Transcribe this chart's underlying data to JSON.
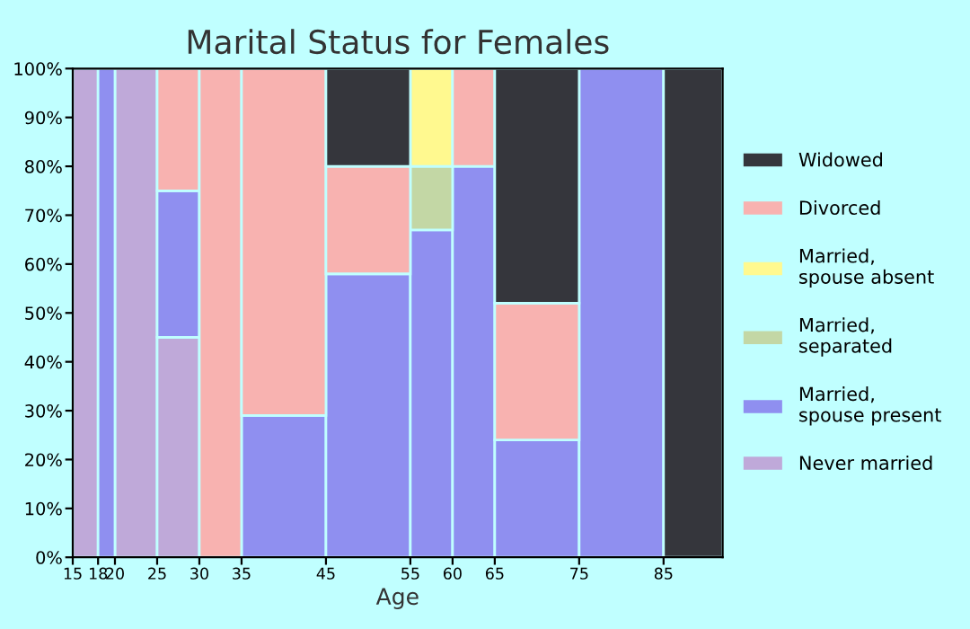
{
  "chart_data": {
    "type": "bar",
    "stacked": true,
    "title": "Marital Status for Females",
    "xlabel": "Age",
    "x": [
      16.5,
      19,
      22.5,
      27.5,
      32.5,
      40,
      50,
      57.5,
      62.5,
      70,
      80,
      88.5
    ],
    "xlim": [
      15,
      92
    ],
    "xticks": [
      15,
      18,
      20,
      25,
      30,
      35,
      45,
      55,
      60,
      65,
      75,
      85
    ],
    "ylim": [
      0,
      100
    ],
    "yticks": [
      {
        "value": 0,
        "label": "0%"
      },
      {
        "value": 10,
        "label": "10%"
      },
      {
        "value": 20,
        "label": "20%"
      },
      {
        "value": 30,
        "label": "30%"
      },
      {
        "value": 40,
        "label": "40%"
      },
      {
        "value": 50,
        "label": "50%"
      },
      {
        "value": 60,
        "label": "60%"
      },
      {
        "value": 70,
        "label": "70%"
      },
      {
        "value": 80,
        "label": "80%"
      },
      {
        "value": 90,
        "label": "90%"
      },
      {
        "value": 100,
        "label": "100%"
      }
    ],
    "grid": false,
    "legend": "right",
    "series": [
      {
        "name": "Never married",
        "color": "#bfa9d9",
        "values": [
          100,
          null,
          100,
          45,
          null,
          null,
          null,
          null,
          null,
          null,
          null,
          null
        ]
      },
      {
        "name": "Married,\nspouse present",
        "color": "#8f8ff0",
        "values": [
          null,
          100,
          null,
          30,
          null,
          29,
          58,
          67,
          80,
          24,
          100,
          null
        ]
      },
      {
        "name": "Married,\nseparated",
        "color": "#c3d7a5",
        "values": [
          null,
          null,
          null,
          null,
          null,
          null,
          null,
          13,
          null,
          null,
          null,
          null
        ]
      },
      {
        "name": "Married,\nspouse absent",
        "color": "#fff98f",
        "values": [
          null,
          null,
          null,
          null,
          null,
          null,
          null,
          20,
          null,
          null,
          null,
          null
        ]
      },
      {
        "name": "Divorced",
        "color": "#f8b2b0",
        "values": [
          null,
          null,
          null,
          25,
          100,
          71,
          22,
          null,
          20,
          28,
          null,
          null
        ]
      },
      {
        "name": "Widowed",
        "color": "#35363c",
        "values": [
          null,
          null,
          null,
          null,
          null,
          null,
          20,
          null,
          null,
          48,
          null,
          100
        ]
      }
    ]
  }
}
